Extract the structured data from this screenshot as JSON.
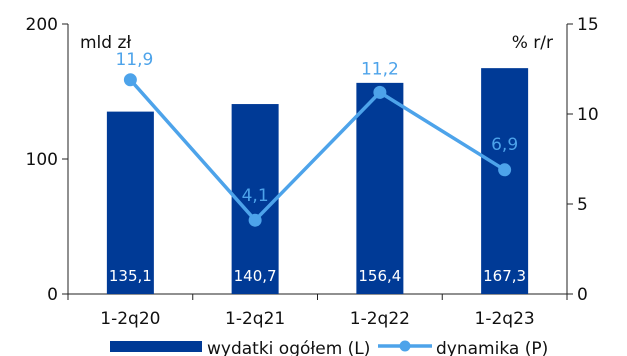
{
  "chart_data": {
    "type": "bar",
    "categories": [
      "1-2q20",
      "1-2q21",
      "1-2q22",
      "1-2q23"
    ],
    "series": [
      {
        "name": "wydatki ogółem (L)",
        "type": "bar",
        "axis": "left",
        "values": [
          135.1,
          140.7,
          156.4,
          167.3
        ],
        "labels": [
          "135,1",
          "140,7",
          "156,4",
          "167,3"
        ],
        "color": "#003a96"
      },
      {
        "name": "dynamika (P)",
        "type": "line",
        "axis": "right",
        "values": [
          11.9,
          4.1,
          11.2,
          6.9
        ],
        "labels": [
          "11,9",
          "4,1",
          "11,2",
          "6,9"
        ],
        "color": "#4da3ea"
      }
    ],
    "y_left": {
      "label": "mld zł",
      "ylim": [
        0,
        200
      ],
      "ticks": [
        "0",
        "100",
        "200"
      ]
    },
    "y_right": {
      "label": "% r/r",
      "ylim": [
        0,
        15
      ],
      "ticks": [
        "0",
        "5",
        "10",
        "15"
      ]
    },
    "grid": false,
    "legend": "bottom"
  }
}
